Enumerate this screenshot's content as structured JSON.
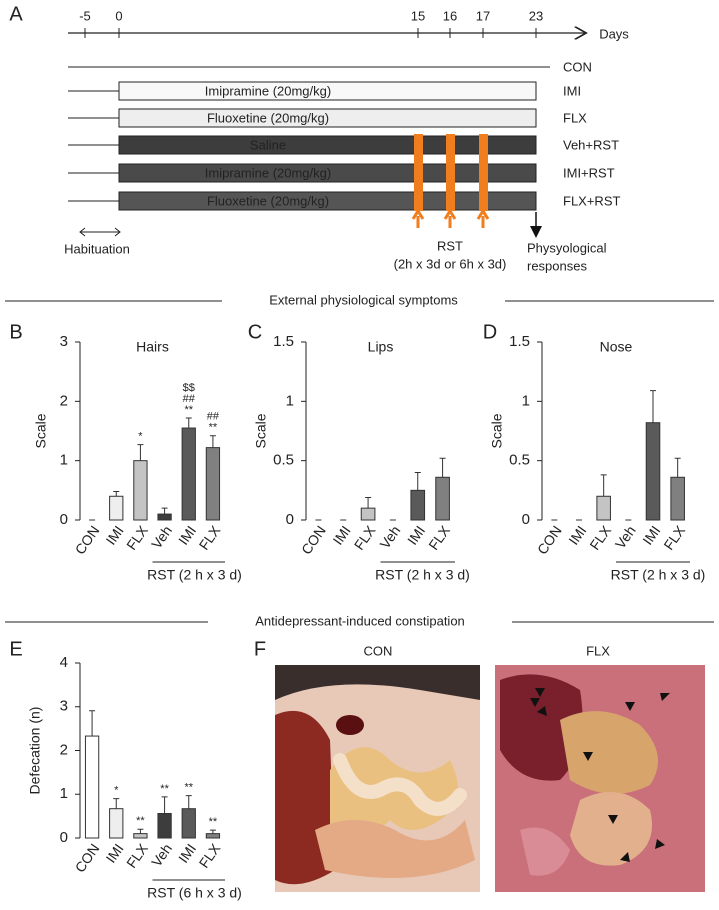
{
  "timeline": {
    "panel": "A",
    "axis_label": "Days",
    "ticks": [
      -5,
      0,
      15,
      16,
      17,
      23
    ],
    "rows": [
      {
        "label": "CON",
        "bar_text": null,
        "bar_color": null,
        "text_color": null
      },
      {
        "label": "IMI",
        "bar_text": "Imipramine (20mg/kg)",
        "bar_color": "#f8f8f8",
        "text_color": "#222222"
      },
      {
        "label": "FLX",
        "bar_text": "Fluoxetine (20mg/kg)",
        "bar_color": "#eeeeee",
        "text_color": "#222222"
      },
      {
        "label": "Veh+RST",
        "bar_text": "Saline",
        "bar_color": "#3d3d3d",
        "text_color": "#ffffff"
      },
      {
        "label": "IMI+RST",
        "bar_text": "Imipramine (20mg/kg)",
        "bar_color": "#4a4a4a",
        "text_color": "#ffffff"
      },
      {
        "label": "FLX+RST",
        "bar_text": "Fluoxetine (20mg/kg)",
        "bar_color": "#555555",
        "text_color": "#ffffff"
      }
    ],
    "rst_color": "#f07d1e",
    "habituation": "Habituation",
    "rst_label": "RST",
    "rst_detail": "(2h x 3d or 6h x 3d)",
    "response_label": [
      "Physyological",
      "responses"
    ]
  },
  "sections": [
    "External physiological symptoms",
    "Antidepressant-induced constipation"
  ],
  "chart_data": [
    {
      "type": "bar",
      "panel": "B",
      "title": "Hairs",
      "ylabel": "Scale",
      "categories": [
        "CON",
        "IMI",
        "FLX",
        "Veh",
        "IMI",
        "FLX"
      ],
      "values": [
        0,
        0.4,
        1.0,
        0.1,
        1.55,
        1.22
      ],
      "errors": [
        0,
        0.08,
        0.27,
        0.1,
        0.17,
        0.2
      ],
      "annotations": [
        null,
        null,
        [
          "*"
        ],
        null,
        [
          "$$",
          "##",
          "**"
        ],
        [
          "##",
          "**"
        ]
      ],
      "colors": [
        "#ffffff",
        "#eeeeee",
        "#c4c4c4",
        "#3d3d3d",
        "#5a5a5a",
        "#808080"
      ],
      "group_label": "RST (2 h x 3 d)",
      "ylim": [
        0,
        3
      ],
      "yticks": [
        0,
        1,
        2,
        3
      ]
    },
    {
      "type": "bar",
      "panel": "C",
      "title": "Lips",
      "ylabel": "Scale",
      "categories": [
        "CON",
        "IMI",
        "FLX",
        "Veh",
        "IMI",
        "FLX"
      ],
      "values": [
        0,
        0,
        0.1,
        0,
        0.25,
        0.36
      ],
      "errors": [
        0,
        0,
        0.09,
        0,
        0.15,
        0.16
      ],
      "annotations": [
        null,
        null,
        null,
        null,
        null,
        null
      ],
      "colors": [
        "#ffffff",
        "#eeeeee",
        "#c4c4c4",
        "#3d3d3d",
        "#5a5a5a",
        "#808080"
      ],
      "group_label": "RST (2 h x 3 d)",
      "ylim": [
        0,
        1.5
      ],
      "yticks": [
        0,
        0.5,
        1,
        1.5
      ]
    },
    {
      "type": "bar",
      "panel": "D",
      "title": "Nose",
      "ylabel": "Scale",
      "categories": [
        "CON",
        "IMI",
        "FLX",
        "Veh",
        "IMI",
        "FLX"
      ],
      "values": [
        0,
        0,
        0.2,
        0,
        0.82,
        0.36
      ],
      "errors": [
        0,
        0,
        0.18,
        0,
        0.27,
        0.16
      ],
      "annotations": [
        null,
        null,
        null,
        null,
        null,
        null
      ],
      "colors": [
        "#ffffff",
        "#eeeeee",
        "#c4c4c4",
        "#3d3d3d",
        "#5a5a5a",
        "#808080"
      ],
      "group_label": "RST (2 h x 3 d)",
      "ylim": [
        0,
        1.5
      ],
      "yticks": [
        0,
        0.5,
        1,
        1.5
      ]
    },
    {
      "type": "bar",
      "panel": "E",
      "title": null,
      "ylabel": "Defecation (n)",
      "categories": [
        "CON",
        "IMI",
        "FLX",
        "Veh",
        "IMI",
        "FLX"
      ],
      "values": [
        2.33,
        0.67,
        0.1,
        0.56,
        0.67,
        0.1
      ],
      "errors": [
        0.58,
        0.23,
        0.1,
        0.38,
        0.3,
        0.08
      ],
      "annotations": [
        null,
        [
          "*"
        ],
        [
          "**"
        ],
        [
          "**"
        ],
        [
          "**"
        ],
        [
          "**"
        ]
      ],
      "colors": [
        "#ffffff",
        "#eeeeee",
        "#c4c4c4",
        "#3d3d3d",
        "#5a5a5a",
        "#808080"
      ],
      "group_label": "RST (6 h x 3 d)",
      "ylim": [
        0,
        4
      ],
      "yticks": [
        0,
        1,
        2,
        3,
        4
      ]
    }
  ],
  "photos": {
    "panel": "F",
    "captions": [
      "CON",
      "FLX"
    ]
  }
}
